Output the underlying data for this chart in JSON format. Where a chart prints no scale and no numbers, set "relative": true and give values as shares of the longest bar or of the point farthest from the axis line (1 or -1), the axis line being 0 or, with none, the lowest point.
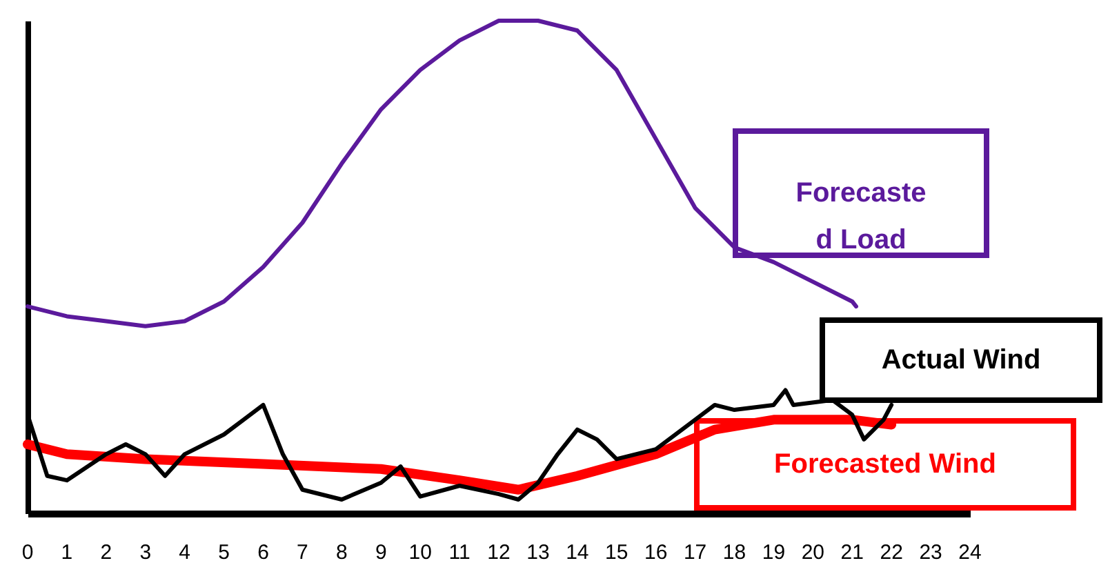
{
  "chart_data": {
    "type": "line",
    "relative": true,
    "xlim": [
      0,
      24
    ],
    "xticks": [
      0,
      1,
      2,
      3,
      4,
      5,
      6,
      7,
      8,
      9,
      10,
      11,
      12,
      13,
      14,
      15,
      16,
      17,
      18,
      19,
      20,
      21,
      22,
      23,
      24
    ],
    "grid": false,
    "legend": false,
    "marker": "none",
    "line_style": "solid",
    "series": [
      {
        "name": "Forecasted Load",
        "color": "#5b1a9c",
        "x": [
          0,
          1,
          2,
          3,
          4,
          5,
          6,
          7,
          8,
          9,
          10,
          11,
          12,
          13,
          14,
          15,
          16,
          17,
          18,
          19,
          20,
          21,
          21.1
        ],
        "values": [
          0.42,
          0.4,
          0.39,
          0.38,
          0.39,
          0.43,
          0.5,
          0.59,
          0.71,
          0.82,
          0.9,
          0.96,
          1.0,
          1.0,
          0.98,
          0.9,
          0.76,
          0.62,
          0.54,
          0.51,
          0.47,
          0.43,
          0.42
        ]
      },
      {
        "name": "Forecasted Wind",
        "color": "#ff0000",
        "x": [
          0,
          1,
          3,
          6,
          9,
          11,
          12.5,
          14,
          16,
          17.5,
          19,
          21,
          22
        ],
        "values": [
          0.14,
          0.12,
          0.11,
          0.1,
          0.09,
          0.067,
          0.048,
          0.076,
          0.12,
          0.17,
          0.19,
          0.19,
          0.18
        ]
      },
      {
        "name": "Actual Wind",
        "color": "#000000",
        "x": [
          0,
          0.5,
          1,
          2,
          2.5,
          3,
          3.5,
          4,
          5,
          5.5,
          6,
          6.5,
          7,
          8,
          9,
          9.5,
          10,
          11,
          12,
          12.5,
          13,
          13.5,
          14,
          14.5,
          15,
          16,
          17,
          17.5,
          18,
          19,
          19.3,
          19.5,
          20.5,
          21,
          21.3,
          21.8,
          22
        ],
        "values": [
          0.2,
          0.076,
          0.067,
          0.12,
          0.14,
          0.12,
          0.076,
          0.12,
          0.16,
          0.19,
          0.22,
          0.12,
          0.048,
          0.028,
          0.062,
          0.095,
          0.034,
          0.056,
          0.039,
          0.028,
          0.062,
          0.12,
          0.17,
          0.15,
          0.11,
          0.13,
          0.19,
          0.22,
          0.21,
          0.22,
          0.25,
          0.22,
          0.23,
          0.2,
          0.15,
          0.19,
          0.22
        ]
      }
    ]
  }
}
